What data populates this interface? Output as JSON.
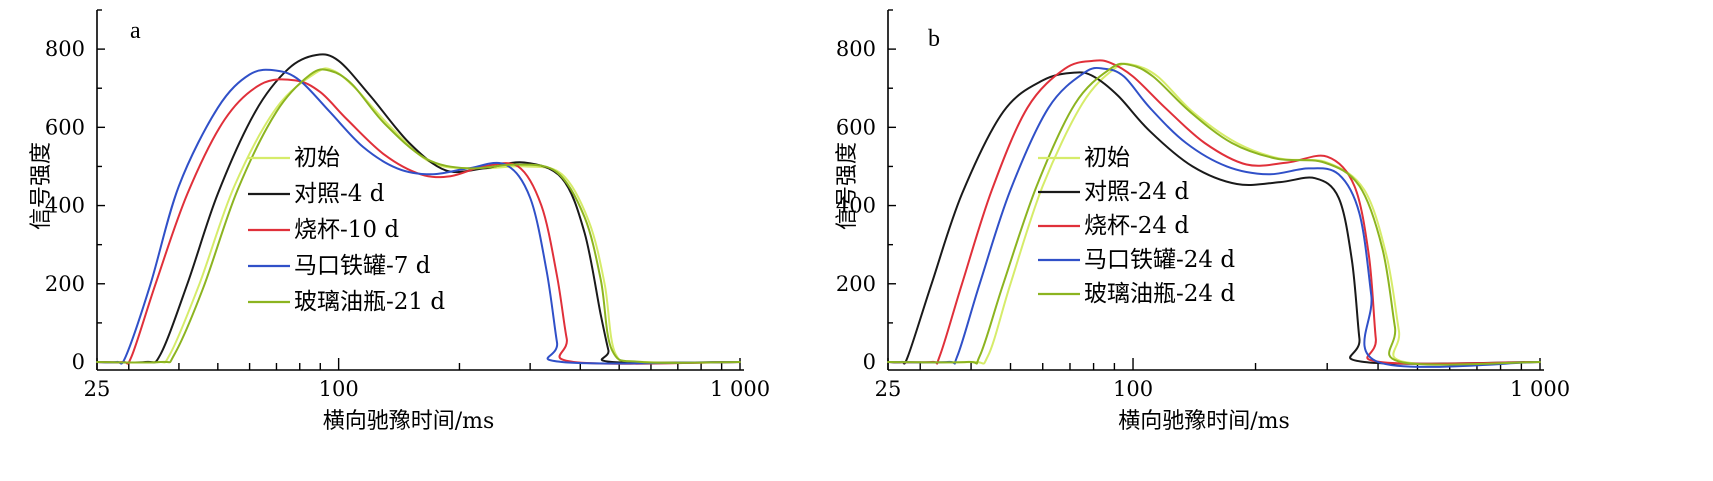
{
  "chart_data": [
    {
      "type": "line",
      "panel_label": "a",
      "xlabel": "横向驰豫时间/ms",
      "ylabel": "信号强度",
      "xscale": "log",
      "xlim": [
        25,
        1000
      ],
      "ylim": [
        0,
        900
      ],
      "xticks": [
        25,
        100,
        1000
      ],
      "xtick_labels": [
        "25",
        "100",
        "1 000"
      ],
      "yticks": [
        0,
        200,
        400,
        600,
        800
      ],
      "ytick_labels": [
        "0",
        "200",
        "400",
        "600",
        "800"
      ],
      "legend_position": "center-left",
      "series": [
        {
          "name": "初始",
          "color": "#d6ec6a",
          "x": [
            25,
            35,
            38,
            45,
            55,
            70,
            88,
            97,
            110,
            135,
            170,
            220,
            290,
            360,
            420,
            460,
            490,
            580,
            1000
          ],
          "y": [
            0,
            0,
            20,
            200,
            450,
            650,
            740,
            745,
            700,
            600,
            510,
            495,
            500,
            480,
            360,
            200,
            20,
            0,
            0
          ]
        },
        {
          "name": "对照-4 d",
          "color": "#1a1a1a",
          "x": [
            25,
            33,
            36,
            42,
            50,
            62,
            75,
            88,
            100,
            120,
            150,
            185,
            230,
            290,
            360,
            410,
            450,
            470,
            480,
            1000
          ],
          "y": [
            0,
            0,
            20,
            200,
            430,
            640,
            750,
            785,
            770,
            680,
            560,
            490,
            495,
            510,
            470,
            330,
            120,
            30,
            0,
            0
          ]
        },
        {
          "name": "烧杯-10 d",
          "color": "#e0303a",
          "x": [
            25,
            29,
            30.5,
            35,
            42,
            52,
            64,
            78,
            90,
            105,
            130,
            160,
            190,
            230,
            280,
            320,
            350,
            370,
            385,
            1000
          ],
          "y": [
            0,
            0,
            15,
            200,
            430,
            620,
            710,
            720,
            690,
            620,
            530,
            480,
            475,
            500,
            500,
            400,
            220,
            60,
            0,
            0
          ]
        },
        {
          "name": "马口铁罐-7 d",
          "color": "#3050c8",
          "x": [
            25,
            28,
            29.5,
            34,
            40,
            50,
            60,
            70,
            80,
            95,
            115,
            140,
            170,
            210,
            260,
            300,
            330,
            350,
            360,
            1000
          ],
          "y": [
            0,
            0,
            15,
            200,
            450,
            650,
            735,
            745,
            720,
            640,
            550,
            495,
            480,
            495,
            505,
            420,
            230,
            50,
            0,
            0
          ]
        },
        {
          "name": "玻璃油瓶-21 d",
          "color": "#8cb420",
          "x": [
            25,
            36,
            39,
            46,
            56,
            70,
            85,
            95,
            108,
            130,
            165,
            210,
            280,
            350,
            410,
            450,
            480,
            570,
            1000
          ],
          "y": [
            0,
            0,
            20,
            190,
            440,
            640,
            735,
            745,
            710,
            610,
            520,
            495,
            505,
            485,
            370,
            210,
            30,
            0,
            0
          ]
        }
      ]
    },
    {
      "type": "line",
      "panel_label": "b",
      "xlabel": "横向驰豫时间/ms",
      "ylabel": "信号强度",
      "xscale": "log",
      "xlim": [
        25,
        1000
      ],
      "ylim": [
        0,
        900
      ],
      "xticks": [
        25,
        100,
        1000
      ],
      "xtick_labels": [
        "25",
        "100",
        "1 000"
      ],
      "yticks": [
        0,
        200,
        400,
        600,
        800
      ],
      "ytick_labels": [
        "0",
        "200",
        "400",
        "600",
        "800"
      ],
      "legend_position": "center-left",
      "series": [
        {
          "name": "初始",
          "color": "#d6ec6a",
          "x": [
            25,
            40,
            44,
            50,
            60,
            75,
            90,
            100,
            115,
            140,
            180,
            230,
            300,
            370,
            420,
            450,
            465,
            1000
          ],
          "y": [
            0,
            0,
            15,
            200,
            450,
            660,
            750,
            760,
            730,
            640,
            560,
            520,
            510,
            440,
            270,
            80,
            0,
            0
          ]
        },
        {
          "name": "对照-24 d",
          "color": "#1a1a1a",
          "x": [
            25,
            27,
            28,
            32,
            38,
            48,
            60,
            72,
            80,
            92,
            110,
            140,
            180,
            230,
            280,
            320,
            345,
            360,
            370,
            1000
          ],
          "y": [
            0,
            0,
            15,
            200,
            430,
            640,
            720,
            740,
            730,
            680,
            590,
            500,
            455,
            460,
            470,
            420,
            260,
            60,
            0,
            0
          ]
        },
        {
          "name": "烧杯-24 d",
          "color": "#e0303a",
          "x": [
            25,
            32,
            33.5,
            38,
            45,
            55,
            68,
            80,
            88,
            100,
            120,
            150,
            190,
            240,
            300,
            350,
            380,
            395,
            405,
            1000
          ],
          "y": [
            0,
            0,
            15,
            200,
            440,
            650,
            750,
            770,
            765,
            730,
            650,
            560,
            505,
            510,
            525,
            450,
            270,
            60,
            0,
            0
          ]
        },
        {
          "name": "马口铁罐-24 d",
          "color": "#3050c8",
          "x": [
            25,
            35,
            37,
            42,
            50,
            62,
            76,
            85,
            95,
            110,
            135,
            170,
            215,
            270,
            320,
            360,
            385,
            400,
            1000
          ],
          "y": [
            0,
            0,
            15,
            200,
            440,
            650,
            740,
            750,
            730,
            650,
            560,
            500,
            480,
            495,
            480,
            380,
            170,
            0,
            0
          ]
        },
        {
          "name": "玻璃油瓶-24 d",
          "color": "#8cb420",
          "x": [
            25,
            39,
            42,
            48,
            58,
            72,
            88,
            98,
            112,
            138,
            175,
            225,
            295,
            360,
            410,
            440,
            455,
            1000
          ],
          "y": [
            0,
            0,
            15,
            200,
            450,
            660,
            750,
            760,
            730,
            640,
            560,
            520,
            510,
            450,
            290,
            90,
            0,
            0
          ]
        }
      ]
    }
  ]
}
